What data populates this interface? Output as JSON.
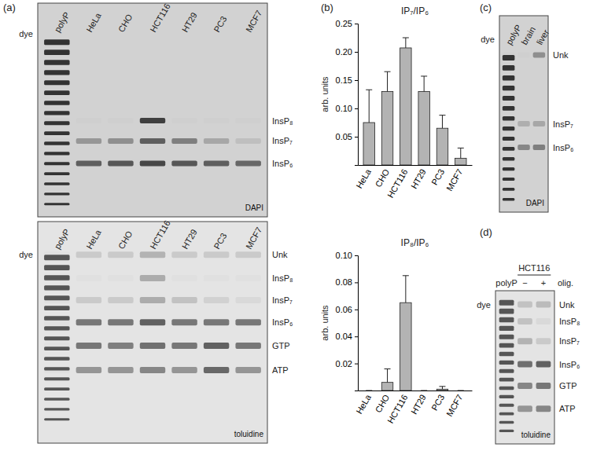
{
  "chart_data": [
    {
      "type": "gel",
      "panel": "(a)",
      "stain": "DAPI",
      "dye_label": "dye",
      "lanes": [
        "polyP",
        "HeLa",
        "CHO",
        "HCT116",
        "HT29",
        "PC3",
        "MCF7"
      ],
      "bands": [
        {
          "name": "InsP₈",
          "values": [
            0,
            0,
            0,
            0.9,
            0,
            0,
            0
          ]
        },
        {
          "name": "InsP₇",
          "values": [
            0,
            0.35,
            0.4,
            0.7,
            0.5,
            0.25,
            0.1
          ]
        },
        {
          "name": "InsP₆",
          "values": [
            0,
            0.7,
            0.75,
            0.85,
            0.75,
            0.7,
            0.65
          ]
        }
      ]
    },
    {
      "type": "gel",
      "stain": "toluidine",
      "dye_label": "dye",
      "lanes": [
        "polyP",
        "HeLa",
        "CHO",
        "HCT116",
        "HT29",
        "PC3",
        "MCF7"
      ],
      "bands": [
        {
          "name": "Unk",
          "values": [
            0,
            0.15,
            0.15,
            0.3,
            0.15,
            0.15,
            0.15
          ]
        },
        {
          "name": "InsP₈",
          "values": [
            0,
            0,
            0,
            0.35,
            0,
            0,
            0
          ]
        },
        {
          "name": "InsP₇",
          "values": [
            0,
            0.15,
            0.15,
            0.35,
            0.2,
            0.1,
            0.05
          ]
        },
        {
          "name": "InsP₆",
          "values": [
            0,
            0.7,
            0.7,
            0.85,
            0.7,
            0.7,
            0.7
          ]
        },
        {
          "name": "GTP",
          "values": [
            0,
            0.7,
            0.65,
            0.75,
            0.7,
            0.85,
            0.7
          ]
        },
        {
          "name": "ATP",
          "values": [
            0,
            0.5,
            0.5,
            0.6,
            0.5,
            0.8,
            0.5
          ]
        }
      ]
    },
    {
      "type": "bar",
      "panel": "(b)",
      "title": "IP₇/IP₆",
      "y_label": "arb. units",
      "categories": [
        "HeLa",
        "CHO",
        "HCT116",
        "HT29",
        "PC3",
        "MCF7"
      ],
      "values": [
        0.075,
        0.13,
        0.207,
        0.13,
        0.065,
        0.012
      ],
      "errors": [
        0.058,
        0.035,
        0.018,
        0.027,
        0.023,
        0.018
      ],
      "color": "#b3b3b3",
      "ylim": [
        0,
        0.25
      ],
      "yticks": [
        0.05,
        {
          "value": 0.1,
          "label": "0.10"
        },
        0.15,
        {
          "value": 0.2,
          "label": "0.20"
        },
        0.25
      ]
    },
    {
      "type": "bar",
      "title": "IP₈/IP₆",
      "y_label": "arb. units",
      "categories": [
        "HeLa",
        "CHO",
        "HCT116",
        "HT29",
        "PC3",
        "MCF7"
      ],
      "values": [
        0,
        0.006,
        0.065,
        0,
        0.001,
        0
      ],
      "errors": [
        0,
        0.01,
        0.02,
        0,
        0.002,
        0
      ],
      "color": "#b3b3b3",
      "ylim": [
        0,
        0.1
      ],
      "yticks": [
        0.02,
        0.04,
        0.06,
        0.08,
        {
          "value": 0.1,
          "label": "0.10"
        }
      ]
    },
    {
      "type": "gel",
      "panel": "(c)",
      "stain": "DAPI",
      "dye_label": "dye",
      "lanes": [
        "polyP",
        "brain",
        "liver"
      ],
      "bands": [
        {
          "name": "Unk",
          "values": [
            0,
            0,
            0.4
          ]
        },
        {
          "name": "InsP₇",
          "values": [
            0,
            0.2,
            0.25
          ]
        },
        {
          "name": "InsP₆",
          "values": [
            0,
            0.45,
            0.5
          ]
        }
      ]
    },
    {
      "type": "gel",
      "panel": "(d)",
      "stain": "toluidine",
      "dye_label": "dye",
      "group_label": "HCT116",
      "lane_note": "olig.",
      "lanes": [
        "polyP",
        "−",
        "+"
      ],
      "bands": [
        {
          "name": "Unk",
          "values": [
            0,
            0.2,
            0.25
          ]
        },
        {
          "name": "InsP₈",
          "values": [
            0,
            0.2,
            0.05
          ]
        },
        {
          "name": "InsP₇",
          "values": [
            0,
            0.3,
            0.15
          ]
        },
        {
          "name": "InsP₆",
          "values": [
            0,
            0.75,
            0.85
          ]
        },
        {
          "name": "GTP",
          "values": [
            0,
            0.6,
            0.7
          ]
        },
        {
          "name": "ATP",
          "values": [
            0,
            0.5,
            0.6
          ]
        }
      ]
    }
  ]
}
